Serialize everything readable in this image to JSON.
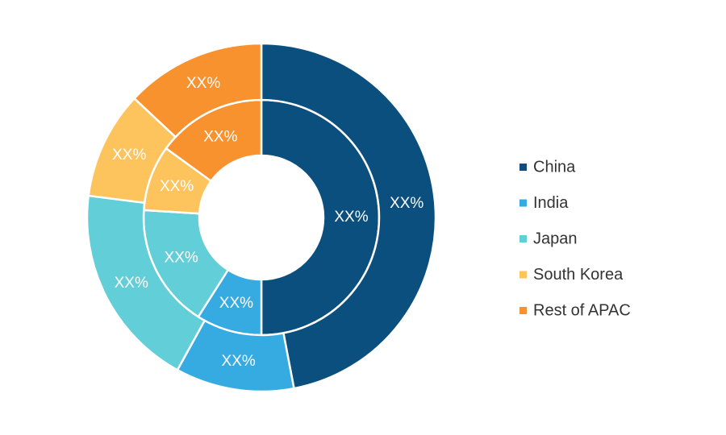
{
  "chart_data": {
    "type": "donut",
    "categories": [
      "China",
      "India",
      "Japan",
      "South Korea",
      "Rest of APAC"
    ],
    "colors": [
      "#0b4f7e",
      "#36abe2",
      "#62ced8",
      "#fdc45e",
      "#f7922f"
    ],
    "series": [
      {
        "values": [
          50,
          9,
          17,
          9,
          15
        ],
        "value_labels": [
          "XX%",
          "XX%",
          "XX%",
          "XX%",
          "XX%"
        ]
      },
      {
        "values": [
          47,
          11,
          19,
          10,
          13
        ],
        "value_labels": [
          "XX%",
          "XX%",
          "XX%",
          "XX%",
          "XX%"
        ]
      }
    ],
    "legend": "right"
  }
}
